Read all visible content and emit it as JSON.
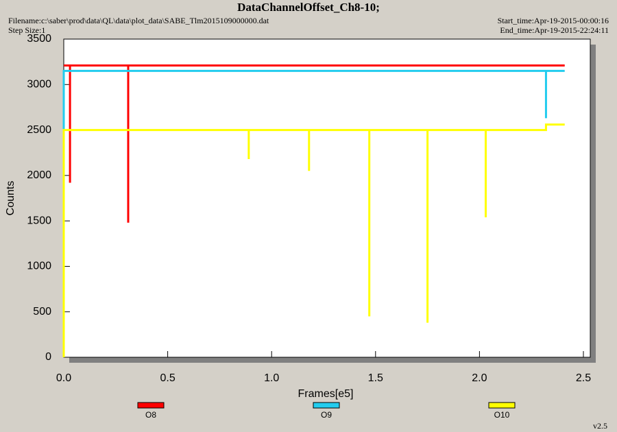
{
  "chart_data": {
    "type": "line",
    "title": "DataChannelOffset_Ch8-10;",
    "filename": "Filename:c:\\saber\\prod\\data\\QL\\data\\plot_data\\SABE_Tlm2015109000000.dat",
    "step_size": "Step Size:1",
    "start_time": "Start_time:Apr-19-2015-00:00:16",
    "end_time": "End_time:Apr-19-2015-22:24:11",
    "version": "v2.5",
    "xlabel": "Frames[e5]",
    "ylabel": "Counts",
    "xlim": [
      0,
      2.5
    ],
    "ylim": [
      0,
      3500
    ],
    "xticks": [
      {
        "value": 0,
        "label": "0.0"
      },
      0.5,
      {
        "value": 1,
        "label": "1.0"
      },
      1.5,
      {
        "value": 2,
        "label": "2.0"
      },
      2.5
    ],
    "yticks": [
      0,
      500,
      1000,
      1500,
      2000,
      2500,
      3000,
      3500
    ],
    "series": [
      {
        "name": "O8",
        "color": "#ff0000",
        "x": [
          0,
          0.03,
          0.03,
          0.03,
          0.31,
          0.31,
          0.31,
          2.41
        ],
        "values": [
          3210,
          3210,
          1920,
          3210,
          3210,
          1480,
          3210,
          3210
        ]
      },
      {
        "name": "O9",
        "color": "#22ccee",
        "x": [
          0,
          0,
          2.32,
          2.32,
          2.32,
          2.41
        ],
        "values": [
          2500,
          3150,
          3150,
          2630,
          3150,
          3150
        ]
      },
      {
        "name": "O10",
        "color": "#ffff00",
        "x": [
          0,
          0,
          0.89,
          0.89,
          0.89,
          1.18,
          1.18,
          1.18,
          1.47,
          1.47,
          1.47,
          1.75,
          1.75,
          1.75,
          2.03,
          2.03,
          2.03,
          2.32,
          2.32,
          2.41
        ],
        "values": [
          0,
          2500,
          2500,
          2180,
          2500,
          2500,
          2050,
          2500,
          2500,
          450,
          2500,
          2500,
          380,
          2500,
          2500,
          1540,
          2500,
          2500,
          2560,
          2560
        ]
      }
    ]
  }
}
